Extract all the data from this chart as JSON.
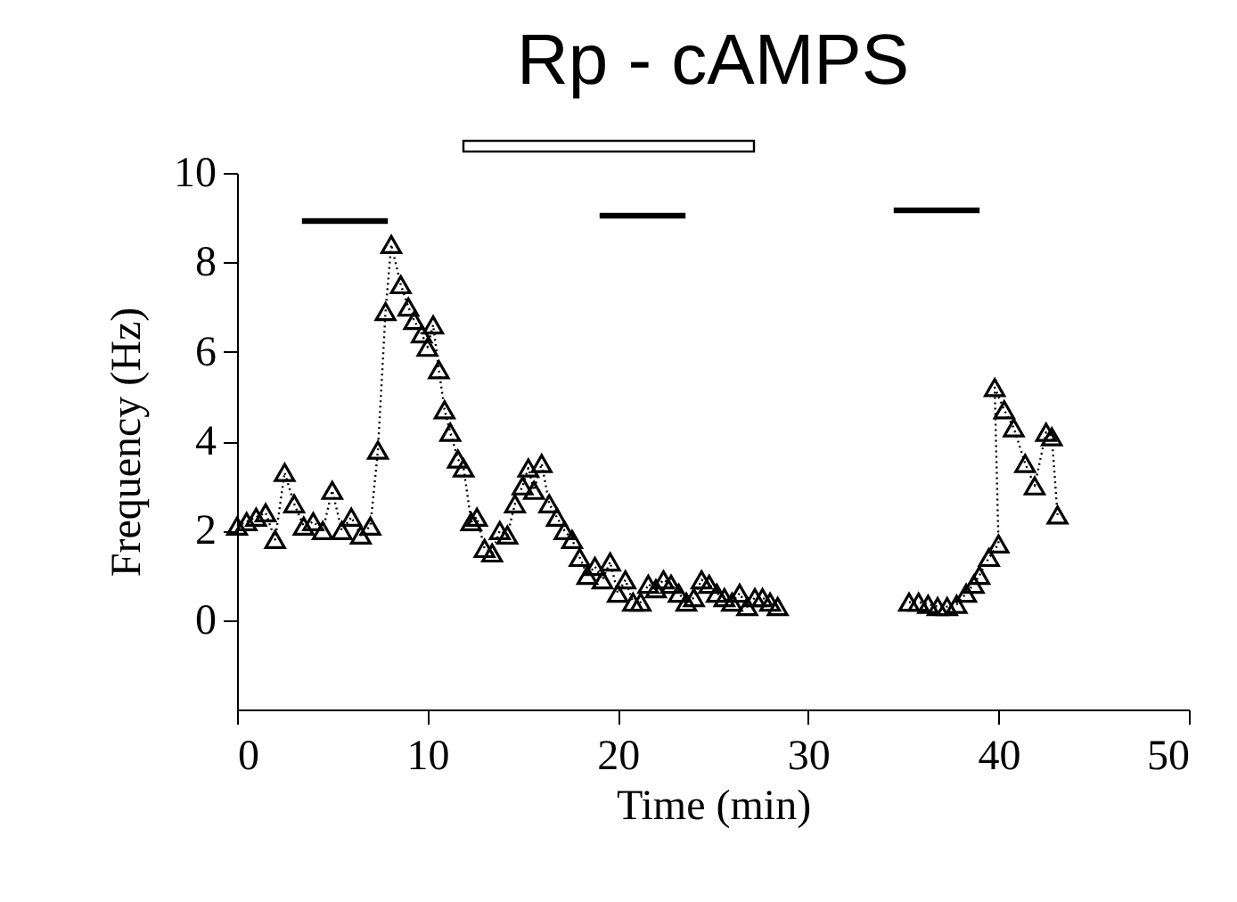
{
  "chart_data": {
    "type": "line",
    "title": "Rp - cAMPS",
    "xlabel": "Time (min)",
    "ylabel": "Frequency (Hz)",
    "xlim": [
      0,
      50
    ],
    "xticks": [
      0,
      10,
      20,
      30,
      40,
      50
    ],
    "ylim": [
      -2,
      10
    ],
    "yticks": [
      0,
      2,
      4,
      6,
      8,
      10
    ],
    "marker": "triangle",
    "line_style": "dotted",
    "grid": false,
    "series": [
      {
        "color": "#000000",
        "x": [
          0,
          0.5,
          1,
          1.5,
          2,
          2.5,
          3,
          3.5,
          4,
          4.5,
          5,
          5.5,
          6,
          6.5,
          7,
          7.4,
          7.8,
          8.1,
          8.6,
          9,
          9.3,
          9.7,
          10,
          10.3,
          10.6,
          10.9,
          11.2,
          11.6,
          11.9,
          12.3,
          12.6,
          13,
          13.4,
          13.8,
          14.2,
          14.6,
          15,
          15.3,
          15.6,
          16,
          16.4,
          16.8,
          17.2,
          17.6,
          18,
          18.4,
          18.8,
          19.2,
          19.6,
          20,
          20.4,
          20.8,
          21.2,
          21.6,
          22,
          22.4,
          22.8,
          23.2,
          23.6,
          24,
          24.4,
          24.8,
          25.2,
          25.6,
          26,
          26.4,
          26.8,
          27.2,
          27.6,
          28,
          28.4,
          31,
          35.3,
          35.8,
          36.3,
          36.8,
          37.3,
          37.8,
          38.3,
          38.7,
          39,
          39.5,
          40,
          39.8,
          40.3,
          40.8,
          41.4,
          41.9,
          42.5,
          42.8,
          43.1
        ],
        "values": [
          2.1,
          2.2,
          2.3,
          2.4,
          1.8,
          3.3,
          2.6,
          2.1,
          2.2,
          2,
          2.9,
          2,
          2.3,
          1.9,
          2.1,
          3.8,
          6.9,
          8.4,
          7.5,
          7,
          6.7,
          6.4,
          6.1,
          6.6,
          5.6,
          4.7,
          4.2,
          3.6,
          3.4,
          2.2,
          2.3,
          1.6,
          1.5,
          2,
          1.9,
          2.6,
          3,
          3.4,
          2.9,
          3.5,
          2.6,
          2.3,
          2,
          1.8,
          1.4,
          1,
          1.2,
          0.9,
          1.3,
          0.6,
          0.9,
          0.4,
          0.4,
          0.8,
          0.7,
          0.9,
          0.8,
          0.6,
          0.4,
          0.5,
          0.9,
          0.8,
          0.6,
          0.5,
          0.4,
          0.6,
          0.3,
          0.5,
          0.5,
          0.4,
          0.3,
          null,
          0.4,
          0.4,
          0.35,
          0.3,
          0.3,
          0.35,
          0.6,
          0.8,
          1,
          1.4,
          1.7,
          5.2,
          4.7,
          4.3,
          3.5,
          3,
          4.2,
          4.1,
          2.35
        ]
      }
    ]
  }
}
